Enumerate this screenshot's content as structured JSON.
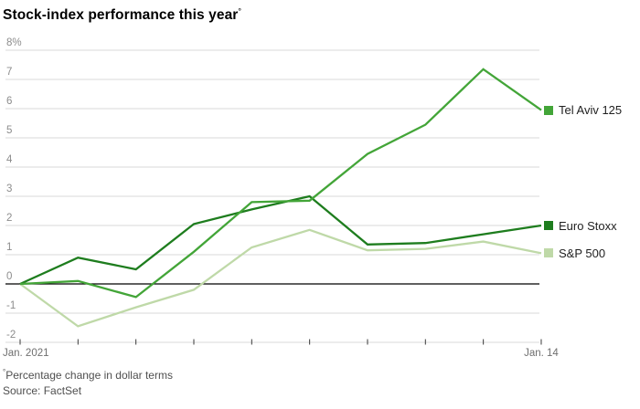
{
  "header": {
    "title": "Stock-index performance this year",
    "title_footnote_marker": "°"
  },
  "chart_data": {
    "type": "line",
    "title": "Stock-index performance this year",
    "x_axis": {
      "first_label": "Jan. 2021",
      "last_label": "Jan. 14",
      "num_points": 10
    },
    "y_axis": {
      "range": [
        -2,
        8
      ],
      "ticks": [
        {
          "value": 8,
          "label": "8%"
        },
        {
          "value": 7,
          "label": "7"
        },
        {
          "value": 6,
          "label": "6"
        },
        {
          "value": 5,
          "label": "5"
        },
        {
          "value": 4,
          "label": "4"
        },
        {
          "value": 3,
          "label": "3"
        },
        {
          "value": 2,
          "label": "2"
        },
        {
          "value": 1,
          "label": "1"
        },
        {
          "value": 0,
          "label": "0"
        },
        {
          "value": -1,
          "label": "-1"
        },
        {
          "value": -2,
          "label": "-2"
        }
      ]
    },
    "grid": true,
    "legend_position": "right",
    "series": [
      {
        "name": "Tel Aviv 125",
        "color": "#43a538",
        "values": [
          0,
          0.1,
          -0.45,
          1.1,
          2.8,
          2.85,
          4.45,
          5.45,
          7.35,
          5.95
        ]
      },
      {
        "name": "Euro Stoxx",
        "color": "#1e7d1e",
        "values": [
          0,
          0.9,
          0.5,
          2.05,
          2.55,
          3.0,
          1.35,
          1.4,
          1.7,
          2.0
        ]
      },
      {
        "name": "S&P 500",
        "color": "#bfd9a8",
        "values": [
          0,
          -1.45,
          -0.8,
          -0.2,
          1.25,
          1.85,
          1.15,
          1.2,
          1.45,
          1.05
        ]
      }
    ]
  },
  "footer": {
    "footnote_marker": "°",
    "footnote": "Percentage change in dollar terms",
    "source": "Source: FactSet"
  }
}
